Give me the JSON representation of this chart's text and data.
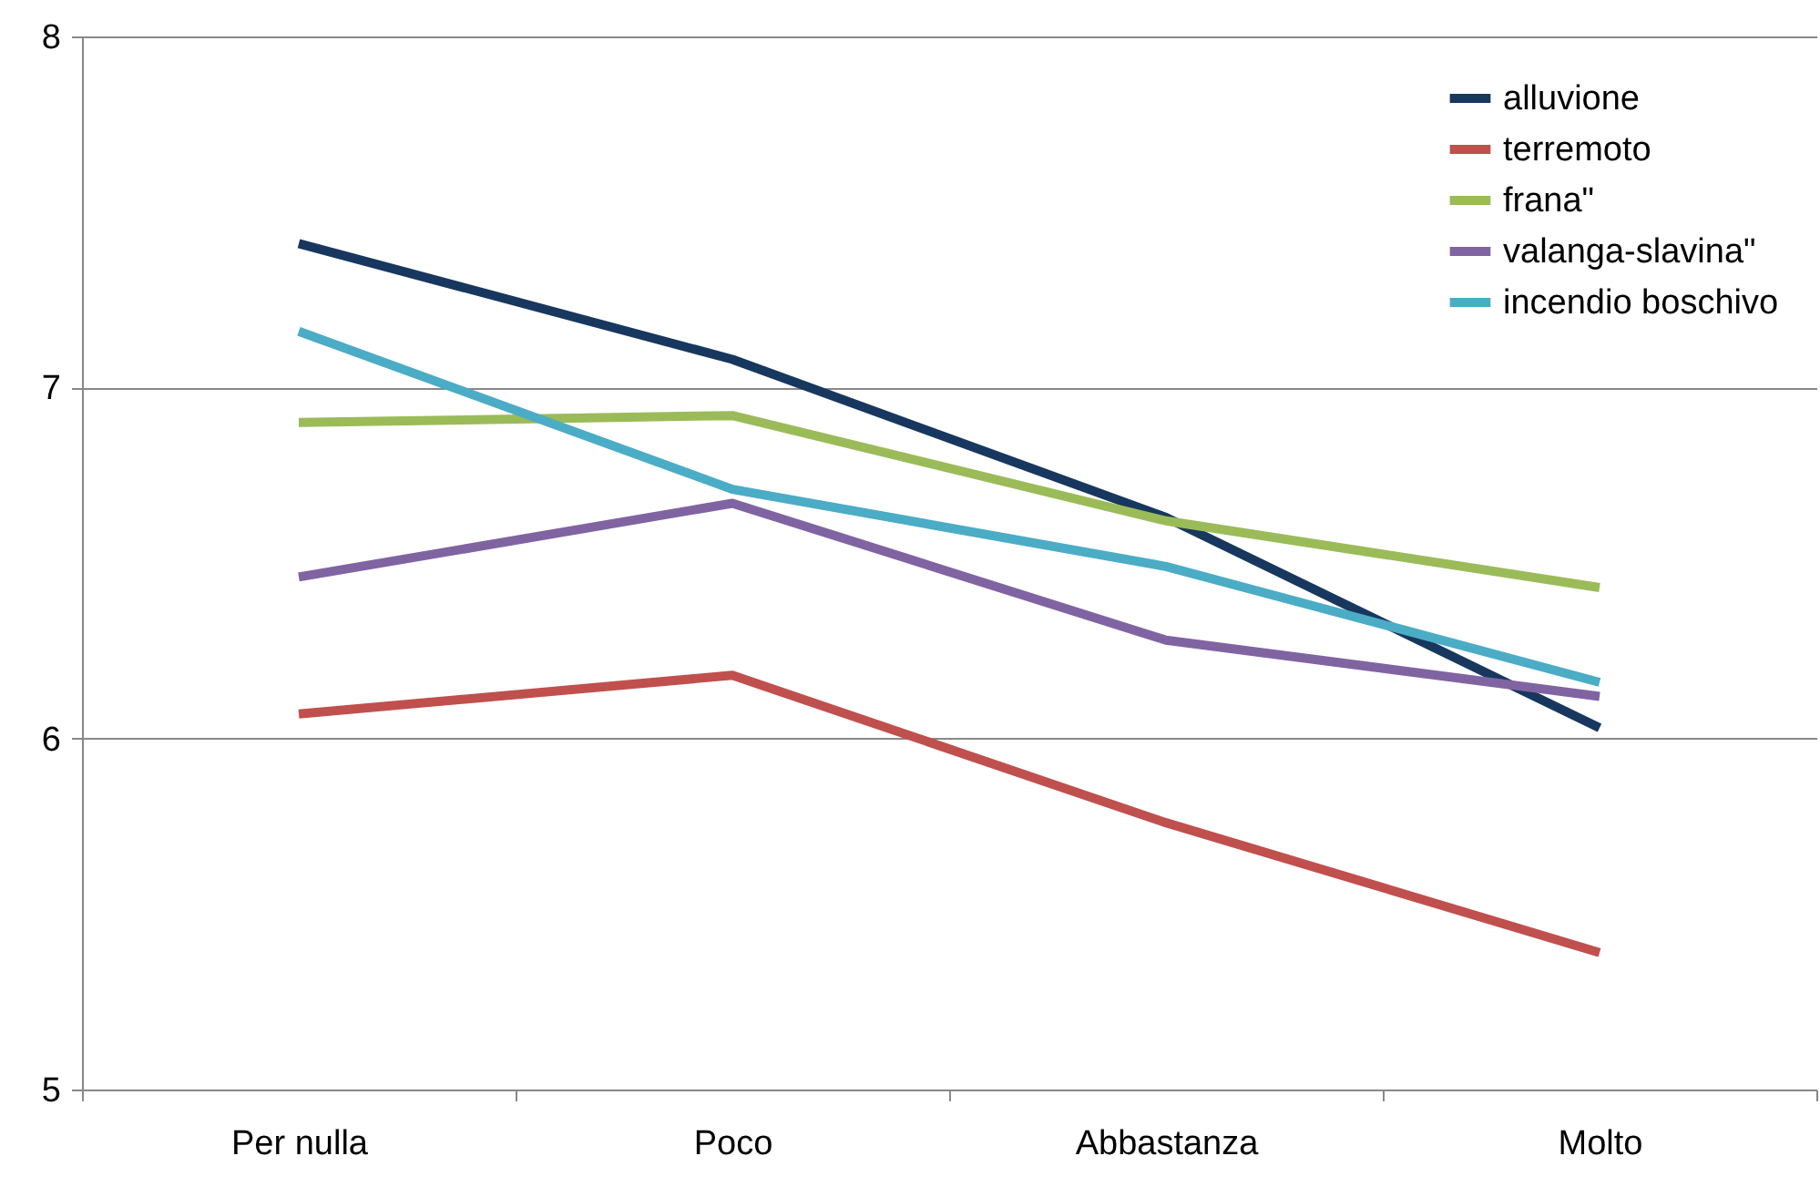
{
  "chart_data": {
    "type": "line",
    "categories": [
      "Per nulla",
      "Poco",
      "Abbastanza",
      "Molto"
    ],
    "series": [
      {
        "name": "alluvione",
        "color": "#17375e",
        "values": [
          7.41,
          7.08,
          6.63,
          6.03
        ]
      },
      {
        "name": "terremoto",
        "color": "#c0504d",
        "values": [
          6.07,
          6.18,
          5.76,
          5.39
        ]
      },
      {
        "name": "frana\"",
        "color": "#9bbb59",
        "values": [
          6.9,
          6.92,
          6.62,
          6.43
        ]
      },
      {
        "name": "valanga-slavina\"",
        "color": "#8064a2",
        "values": [
          6.46,
          6.67,
          6.28,
          6.12
        ]
      },
      {
        "name": "incendio boschivo",
        "color": "#4bacc6",
        "values": [
          7.16,
          6.71,
          6.49,
          6.16
        ]
      }
    ],
    "ylim": [
      5,
      8
    ],
    "yticks": [
      5,
      6,
      7,
      8
    ],
    "grid": "y",
    "legend": "top right"
  }
}
